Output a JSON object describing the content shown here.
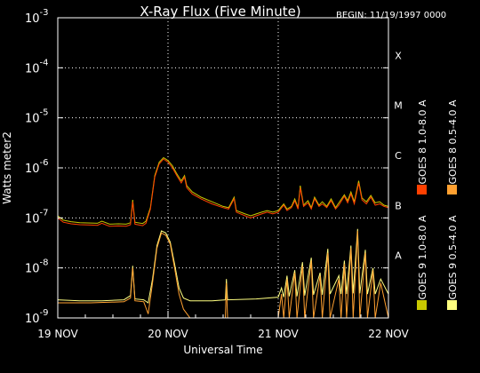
{
  "chart_data": {
    "type": "line",
    "title": "X-Ray Flux (Five Minute)",
    "begin": "BEGIN: 11/19/1997 0000",
    "xlabel": "Universal Time",
    "ylabel": "Watts meter2",
    "x_ticks": [
      "19 NOV",
      "20 NOV",
      "21 NOV",
      "22 NOV"
    ],
    "x_range_days": [
      0,
      3
    ],
    "y_scale": "log",
    "ylim": [
      1e-09,
      0.001
    ],
    "y_ticks": [
      {
        "value": 1e-09,
        "mantissa": "10",
        "exp": "-9"
      },
      {
        "value": 1e-08,
        "mantissa": "10",
        "exp": "-8"
      },
      {
        "value": 1e-07,
        "mantissa": "10",
        "exp": "-7"
      },
      {
        "value": 1e-06,
        "mantissa": "10",
        "exp": "-6"
      },
      {
        "value": 1e-05,
        "mantissa": "10",
        "exp": "-5"
      },
      {
        "value": 0.0001,
        "mantissa": "10",
        "exp": "-4"
      },
      {
        "value": 0.001,
        "mantissa": "10",
        "exp": "-3"
      }
    ],
    "flare_classes": [
      {
        "label": "X",
        "value": 0.0001
      },
      {
        "label": "M",
        "value": 1e-05
      },
      {
        "label": "C",
        "value": 1e-06
      },
      {
        "label": "B",
        "value": 1e-07
      },
      {
        "label": "A",
        "value": 1e-08
      }
    ],
    "grid": "dotted",
    "series": [
      {
        "name": "GOES 8  1.0-8.0 A",
        "color": "#ff4000",
        "band": "long",
        "points": [
          [
            0,
            1e-07
          ],
          [
            0.05,
            8.2e-08
          ],
          [
            0.12,
            7.6e-08
          ],
          [
            0.2,
            7.3e-08
          ],
          [
            0.3,
            7.2e-08
          ],
          [
            0.36,
            7.1e-08
          ],
          [
            0.4,
            7.8e-08
          ],
          [
            0.47,
            6.8e-08
          ],
          [
            0.55,
            6.9e-08
          ],
          [
            0.62,
            6.8e-08
          ],
          [
            0.66,
            7.3e-08
          ],
          [
            0.68,
            2.1e-07
          ],
          [
            0.7,
            7.5e-08
          ],
          [
            0.77,
            7e-08
          ],
          [
            0.8,
            7.8e-08
          ],
          [
            0.84,
            1.5e-07
          ],
          [
            0.88,
            6.5e-07
          ],
          [
            0.92,
            1.2e-06
          ],
          [
            0.96,
            1.5e-06
          ],
          [
            1.0,
            1.3e-06
          ],
          [
            1.04,
            1e-06
          ],
          [
            1.08,
            7e-07
          ],
          [
            1.12,
            5e-07
          ],
          [
            1.15,
            6.5e-07
          ],
          [
            1.17,
            4e-07
          ],
          [
            1.22,
            3e-07
          ],
          [
            1.3,
            2.4e-07
          ],
          [
            1.4,
            1.9e-07
          ],
          [
            1.5,
            1.6e-07
          ],
          [
            1.55,
            1.5e-07
          ],
          [
            1.6,
            2.4e-07
          ],
          [
            1.62,
            1.3e-07
          ],
          [
            1.7,
            1.1e-07
          ],
          [
            1.75,
            1e-07
          ],
          [
            1.8,
            1.1e-07
          ],
          [
            1.85,
            1.2e-07
          ],
          [
            1.9,
            1.3e-07
          ],
          [
            1.95,
            1.2e-07
          ],
          [
            2.0,
            1.3e-07
          ],
          [
            2.05,
            1.8e-07
          ],
          [
            2.08,
            1.4e-07
          ],
          [
            2.12,
            1.6e-07
          ],
          [
            2.15,
            2.2e-07
          ],
          [
            2.18,
            1.5e-07
          ],
          [
            2.2,
            4e-07
          ],
          [
            2.23,
            1.7e-07
          ],
          [
            2.27,
            2e-07
          ],
          [
            2.3,
            1.5e-07
          ],
          [
            2.33,
            2.4e-07
          ],
          [
            2.37,
            1.7e-07
          ],
          [
            2.4,
            1.9e-07
          ],
          [
            2.44,
            1.6e-07
          ],
          [
            2.48,
            2.2e-07
          ],
          [
            2.52,
            1.5e-07
          ],
          [
            2.55,
            1.8e-07
          ],
          [
            2.6,
            2.7e-07
          ],
          [
            2.63,
            2e-07
          ],
          [
            2.66,
            3e-07
          ],
          [
            2.69,
            1.9e-07
          ],
          [
            2.73,
            5e-07
          ],
          [
            2.76,
            2.3e-07
          ],
          [
            2.8,
            1.9e-07
          ],
          [
            2.84,
            2.6e-07
          ],
          [
            2.88,
            1.8e-07
          ],
          [
            2.92,
            1.9e-07
          ],
          [
            2.96,
            1.7e-07
          ],
          [
            3.0,
            1.6e-07
          ]
        ]
      },
      {
        "name": "GOES 8  0.5-4.0 A",
        "color": "#ffa030",
        "band": "short",
        "points": [
          [
            0,
            2e-09
          ],
          [
            0.3,
            2e-09
          ],
          [
            0.6,
            2.1e-09
          ],
          [
            0.66,
            2.5e-09
          ],
          [
            0.68,
            1e-08
          ],
          [
            0.7,
            2.2e-09
          ],
          [
            0.78,
            2.1e-09
          ],
          [
            0.82,
            1.2e-09
          ],
          [
            0.86,
            5e-09
          ],
          [
            0.9,
            2.5e-08
          ],
          [
            0.94,
            5e-08
          ],
          [
            0.98,
            4.5e-08
          ],
          [
            1.02,
            3e-08
          ],
          [
            1.06,
            1e-08
          ],
          [
            1.1,
            3e-09
          ],
          [
            1.14,
            1.5e-09
          ],
          [
            1.2,
            1e-09
          ],
          [
            1.3,
            1e-09
          ],
          [
            1.52,
            1e-09
          ],
          [
            1.53,
            5e-09
          ],
          [
            1.54,
            1e-09
          ],
          [
            2.0,
            1e-09
          ],
          [
            2.03,
            3e-09
          ],
          [
            2.05,
            1e-09
          ],
          [
            2.08,
            6e-09
          ],
          [
            2.1,
            1e-09
          ],
          [
            2.15,
            8e-09
          ],
          [
            2.17,
            1e-09
          ],
          [
            2.22,
            1.1e-08
          ],
          [
            2.24,
            1e-09
          ],
          [
            2.3,
            1.4e-08
          ],
          [
            2.32,
            1e-09
          ],
          [
            2.38,
            7e-09
          ],
          [
            2.4,
            1e-09
          ],
          [
            2.45,
            2e-08
          ],
          [
            2.47,
            1e-09
          ],
          [
            2.55,
            6e-09
          ],
          [
            2.57,
            1e-09
          ],
          [
            2.6,
            1.2e-08
          ],
          [
            2.62,
            1e-09
          ],
          [
            2.66,
            2.5e-08
          ],
          [
            2.68,
            1e-09
          ],
          [
            2.72,
            5.5e-08
          ],
          [
            2.74,
            1e-09
          ],
          [
            2.79,
            2e-08
          ],
          [
            2.81,
            1e-09
          ],
          [
            2.86,
            9e-09
          ],
          [
            2.88,
            1e-09
          ],
          [
            2.93,
            5e-09
          ],
          [
            3.0,
            1e-09
          ]
        ]
      },
      {
        "name": "GOES 9  1.0-8.0 A",
        "color": "#c8c800",
        "band": "long",
        "points": [
          [
            0,
            1.1e-07
          ],
          [
            0.05,
            9e-08
          ],
          [
            0.12,
            8.4e-08
          ],
          [
            0.2,
            8e-08
          ],
          [
            0.3,
            7.9e-08
          ],
          [
            0.36,
            7.8e-08
          ],
          [
            0.4,
            8.6e-08
          ],
          [
            0.47,
            7.5e-08
          ],
          [
            0.55,
            7.6e-08
          ],
          [
            0.62,
            7.5e-08
          ],
          [
            0.66,
            8e-08
          ],
          [
            0.68,
            2.3e-07
          ],
          [
            0.7,
            8.2e-08
          ],
          [
            0.77,
            7.7e-08
          ],
          [
            0.8,
            8.6e-08
          ],
          [
            0.84,
            1.6e-07
          ],
          [
            0.88,
            7e-07
          ],
          [
            0.92,
            1.3e-06
          ],
          [
            0.96,
            1.6e-06
          ],
          [
            1.0,
            1.4e-06
          ],
          [
            1.04,
            1.1e-06
          ],
          [
            1.08,
            7.6e-07
          ],
          [
            1.12,
            5.5e-07
          ],
          [
            1.15,
            7e-07
          ],
          [
            1.17,
            4.4e-07
          ],
          [
            1.22,
            3.3e-07
          ],
          [
            1.3,
            2.6e-07
          ],
          [
            1.4,
            2.1e-07
          ],
          [
            1.5,
            1.7e-07
          ],
          [
            1.55,
            1.6e-07
          ],
          [
            1.6,
            2.6e-07
          ],
          [
            1.62,
            1.4e-07
          ],
          [
            1.7,
            1.2e-07
          ],
          [
            1.75,
            1.1e-07
          ],
          [
            1.8,
            1.2e-07
          ],
          [
            1.85,
            1.3e-07
          ],
          [
            1.9,
            1.4e-07
          ],
          [
            1.95,
            1.3e-07
          ],
          [
            2.0,
            1.4e-07
          ],
          [
            2.05,
            1.9e-07
          ],
          [
            2.08,
            1.5e-07
          ],
          [
            2.12,
            1.7e-07
          ],
          [
            2.15,
            2.4e-07
          ],
          [
            2.18,
            1.6e-07
          ],
          [
            2.2,
            4.4e-07
          ],
          [
            2.23,
            1.8e-07
          ],
          [
            2.27,
            2.2e-07
          ],
          [
            2.3,
            1.6e-07
          ],
          [
            2.33,
            2.6e-07
          ],
          [
            2.37,
            1.8e-07
          ],
          [
            2.4,
            2.1e-07
          ],
          [
            2.44,
            1.7e-07
          ],
          [
            2.48,
            2.4e-07
          ],
          [
            2.52,
            1.6e-07
          ],
          [
            2.55,
            2e-07
          ],
          [
            2.6,
            2.9e-07
          ],
          [
            2.63,
            2.2e-07
          ],
          [
            2.66,
            3.3e-07
          ],
          [
            2.69,
            2.1e-07
          ],
          [
            2.73,
            5.5e-07
          ],
          [
            2.76,
            2.5e-07
          ],
          [
            2.8,
            2.1e-07
          ],
          [
            2.84,
            2.8e-07
          ],
          [
            2.88,
            2e-07
          ],
          [
            2.92,
            2.1e-07
          ],
          [
            2.96,
            1.8e-07
          ],
          [
            3.0,
            1.7e-07
          ]
        ]
      },
      {
        "name": "GOES 9  0.5-4.0 A",
        "color": "#ffff80",
        "band": "short",
        "points": [
          [
            0,
            2.3e-09
          ],
          [
            0.2,
            2.2e-09
          ],
          [
            0.4,
            2.2e-09
          ],
          [
            0.6,
            2.3e-09
          ],
          [
            0.66,
            2.8e-09
          ],
          [
            0.68,
            1.1e-08
          ],
          [
            0.7,
            2.4e-09
          ],
          [
            0.78,
            2.3e-09
          ],
          [
            0.82,
            2e-09
          ],
          [
            0.86,
            6e-09
          ],
          [
            0.9,
            2.8e-08
          ],
          [
            0.94,
            5.5e-08
          ],
          [
            0.98,
            5e-08
          ],
          [
            1.02,
            3.3e-08
          ],
          [
            1.06,
            1.2e-08
          ],
          [
            1.1,
            4e-09
          ],
          [
            1.14,
            2.5e-09
          ],
          [
            1.2,
            2.2e-09
          ],
          [
            1.4,
            2.2e-09
          ],
          [
            1.52,
            2.3e-09
          ],
          [
            1.53,
            6e-09
          ],
          [
            1.54,
            2.3e-09
          ],
          [
            1.8,
            2.4e-09
          ],
          [
            2.0,
            2.6e-09
          ],
          [
            2.03,
            4e-09
          ],
          [
            2.05,
            2.6e-09
          ],
          [
            2.08,
            7e-09
          ],
          [
            2.1,
            2.7e-09
          ],
          [
            2.15,
            9e-09
          ],
          [
            2.17,
            2.7e-09
          ],
          [
            2.22,
            1.3e-08
          ],
          [
            2.24,
            2.8e-09
          ],
          [
            2.3,
            1.6e-08
          ],
          [
            2.32,
            2.9e-09
          ],
          [
            2.38,
            8e-09
          ],
          [
            2.4,
            2.9e-09
          ],
          [
            2.45,
            2.4e-08
          ],
          [
            2.47,
            3e-09
          ],
          [
            2.55,
            7e-09
          ],
          [
            2.57,
            3e-09
          ],
          [
            2.6,
            1.4e-08
          ],
          [
            2.62,
            3e-09
          ],
          [
            2.66,
            2.8e-08
          ],
          [
            2.68,
            3.1e-09
          ],
          [
            2.72,
            6e-08
          ],
          [
            2.74,
            3.1e-09
          ],
          [
            2.79,
            2.3e-08
          ],
          [
            2.81,
            3e-09
          ],
          [
            2.86,
            1e-08
          ],
          [
            2.88,
            3e-09
          ],
          [
            2.93,
            6e-09
          ],
          [
            3.0,
            3e-09
          ]
        ]
      }
    ]
  }
}
